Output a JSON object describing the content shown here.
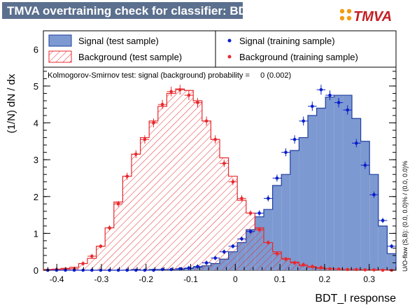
{
  "header": {
    "title": "TMVA overtraining check for classifier: BDT_I",
    "logo": "TMVA"
  },
  "colors": {
    "title_bg": "#5b6f8e",
    "signal_fill": "#7d99d1",
    "signal_line": "#1f3fa0",
    "background_line": "#e8292c",
    "signal_points": "#0a1ecb",
    "background_points": "#e8292c",
    "logo_orange": "#f39a12",
    "logo_red": "#c31f24"
  },
  "legend": {
    "signal_test": "Signal (test sample)",
    "background_test": "Background (test sample)",
    "signal_train": "Signal (training sample)",
    "background_train": "Background (training sample)"
  },
  "annotation": {
    "ks": "Kolmogorov-Smirnov test: signal (background) probability =     0 (0.002)"
  },
  "side_note": "U/O-flow (S,B): (0.0, 0.0)% / (0.0, 0.0)%",
  "chart_data": {
    "type": "histogram",
    "title": "TMVA overtraining check for classifier: BDT_I",
    "xlabel": "BDT_I response",
    "ylabel": "(1/N) dN / dx",
    "xlim": [
      -0.43,
      0.36
    ],
    "ylim": [
      0,
      6.5
    ],
    "xticks": [
      -0.4,
      -0.3,
      -0.2,
      -0.1,
      0,
      0.1,
      0.2,
      0.3
    ],
    "xtick_labels": [
      "-0.4",
      "-0.3",
      "-0.2",
      "-0.1",
      "0",
      "0.1",
      "0.2",
      "0.3"
    ],
    "yticks": [
      0,
      1,
      2,
      3,
      4,
      5,
      6
    ],
    "ytick_labels": [
      "0",
      "1",
      "2",
      "3",
      "4",
      "5",
      "6"
    ],
    "bin_edges_range": [
      -0.43,
      0.36
    ],
    "bin_count": 40,
    "series": [
      {
        "name": "Signal (test sample)",
        "style": "filled-histogram",
        "values": [
          0,
          0,
          0,
          0,
          0,
          0,
          0,
          0,
          0,
          0,
          0.02,
          0,
          0.02,
          0.02,
          0.02,
          0.02,
          0.05,
          0.08,
          0.12,
          0.18,
          0.3,
          0.5,
          0.75,
          1.1,
          1.45,
          1.65,
          2.3,
          2.6,
          3.25,
          3.6,
          4.2,
          4.4,
          4.7,
          4.75,
          4.75,
          4.12,
          3.5,
          2.6,
          1.2,
          0.45
        ]
      },
      {
        "name": "Background (test sample)",
        "style": "hatched-histogram",
        "values": [
          0.02,
          0.03,
          0.05,
          0.08,
          0.18,
          0.32,
          0.65,
          1.15,
          1.85,
          2.55,
          3.15,
          3.6,
          4.05,
          4.45,
          4.8,
          4.92,
          4.88,
          4.6,
          4.05,
          3.55,
          3.05,
          2.55,
          1.9,
          1.55,
          1.15,
          0.75,
          0.5,
          0.32,
          0.22,
          0.12,
          0.08,
          0.05,
          0.04,
          0.03,
          0.02,
          0.02,
          0.01,
          0.01,
          0.01,
          0
        ]
      },
      {
        "name": "Signal (training sample)",
        "style": "points-with-errors",
        "values": [
          0,
          0,
          0,
          0,
          0,
          0,
          0,
          0,
          0,
          0,
          0,
          0,
          0,
          0.02,
          0.02,
          0.04,
          0.06,
          0.1,
          0.2,
          0.33,
          0.5,
          0.65,
          0.85,
          1.05,
          1.55,
          1.95,
          2.5,
          3.2,
          3.55,
          4.05,
          4.45,
          4.9,
          4.75,
          4.55,
          4.35,
          3.45,
          2.85,
          2.05,
          1.35,
          0.65
        ]
      },
      {
        "name": "Background (training sample)",
        "style": "points-with-errors",
        "values": [
          0,
          0.02,
          0.03,
          0.04,
          0.18,
          0.38,
          0.65,
          1.15,
          1.8,
          2.55,
          3.15,
          3.55,
          4.0,
          4.5,
          4.85,
          4.9,
          4.75,
          4.55,
          4.05,
          3.55,
          2.9,
          2.4,
          1.95,
          1.55,
          1.1,
          0.75,
          0.45,
          0.3,
          0.2,
          0.15,
          0.1,
          0.07,
          0.04,
          0.03,
          0.02,
          0.02,
          0.01,
          0.01,
          0.0,
          0.0
        ]
      }
    ],
    "legend_position": "top"
  }
}
